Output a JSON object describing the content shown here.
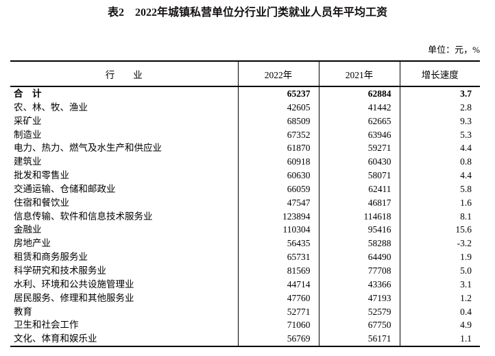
{
  "title": "表2　2022年城镇私营单位分行业门类就业人员年平均工资",
  "unit_note": "单位：元，%",
  "table": {
    "headers": [
      "行　　业",
      "2022年",
      "2021年",
      "增长速度"
    ],
    "rows": [
      {
        "industry": "合　计",
        "y2022": "65237",
        "y2021": "62884",
        "growth": "3.7",
        "bold": true
      },
      {
        "industry": "农、林、牧、渔业",
        "y2022": "42605",
        "y2021": "41442",
        "growth": "2.8",
        "bold": false
      },
      {
        "industry": "采矿业",
        "y2022": "68509",
        "y2021": "62665",
        "growth": "9.3",
        "bold": false
      },
      {
        "industry": "制造业",
        "y2022": "67352",
        "y2021": "63946",
        "growth": "5.3",
        "bold": false
      },
      {
        "industry": "电力、热力、燃气及水生产和供应业",
        "y2022": "61870",
        "y2021": "59271",
        "growth": "4.4",
        "bold": false
      },
      {
        "industry": "建筑业",
        "y2022": "60918",
        "y2021": "60430",
        "growth": "0.8",
        "bold": false
      },
      {
        "industry": "批发和零售业",
        "y2022": "60630",
        "y2021": "58071",
        "growth": "4.4",
        "bold": false
      },
      {
        "industry": "交通运输、仓储和邮政业",
        "y2022": "66059",
        "y2021": "62411",
        "growth": "5.8",
        "bold": false
      },
      {
        "industry": "住宿和餐饮业",
        "y2022": "47547",
        "y2021": "46817",
        "growth": "1.6",
        "bold": false
      },
      {
        "industry": "信息传输、软件和信息技术服务业",
        "y2022": "123894",
        "y2021": "114618",
        "growth": "8.1",
        "bold": false
      },
      {
        "industry": "金融业",
        "y2022": "110304",
        "y2021": "95416",
        "growth": "15.6",
        "bold": false
      },
      {
        "industry": "房地产业",
        "y2022": "56435",
        "y2021": "58288",
        "growth": "-3.2",
        "bold": false
      },
      {
        "industry": "租赁和商务服务业",
        "y2022": "65731",
        "y2021": "64490",
        "growth": "1.9",
        "bold": false
      },
      {
        "industry": "科学研究和技术服务业",
        "y2022": "81569",
        "y2021": "77708",
        "growth": "5.0",
        "bold": false
      },
      {
        "industry": "水利、环境和公共设施管理业",
        "y2022": "44714",
        "y2021": "43366",
        "growth": "3.1",
        "bold": false
      },
      {
        "industry": "居民服务、修理和其他服务业",
        "y2022": "47760",
        "y2021": "47193",
        "growth": "1.2",
        "bold": false
      },
      {
        "industry": "教育",
        "y2022": "52771",
        "y2021": "52579",
        "growth": "0.4",
        "bold": false
      },
      {
        "industry": "卫生和社会工作",
        "y2022": "71060",
        "y2021": "67750",
        "growth": "4.9",
        "bold": false
      },
      {
        "industry": "文化、体育和娱乐业",
        "y2022": "56769",
        "y2021": "56171",
        "growth": "1.1",
        "bold": false
      }
    ]
  },
  "colors": {
    "text": "#000000",
    "border": "#000000",
    "background": "#ffffff"
  }
}
